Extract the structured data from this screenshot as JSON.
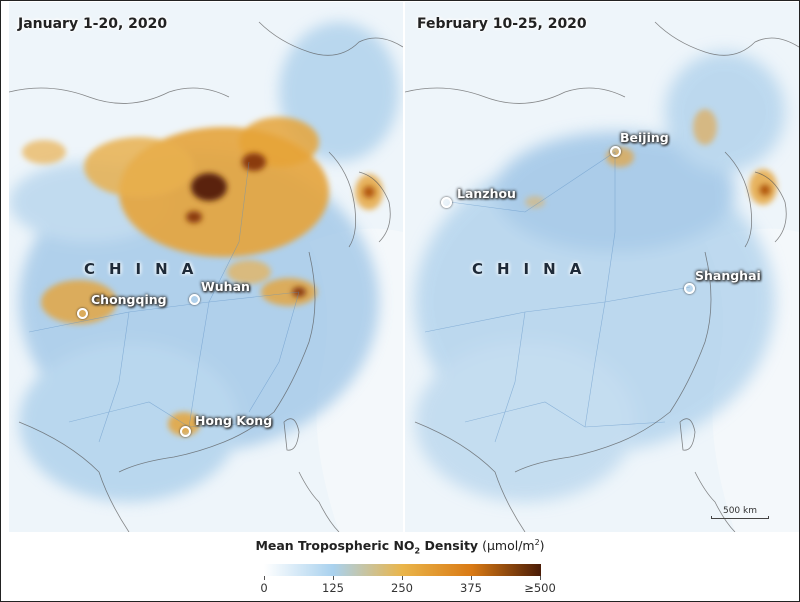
{
  "panels": [
    {
      "title": "January 1-20, 2020",
      "country_label": "CHINA",
      "cities": [
        "Chongqing",
        "Wuhan",
        "Hong Kong"
      ]
    },
    {
      "title": "February 10-25, 2020",
      "country_label": "CHINA",
      "cities": [
        "Beijing",
        "Lanzhou",
        "Shanghai"
      ]
    }
  ],
  "scale_bar": {
    "label": "500 km"
  },
  "legend": {
    "title_bold": "Mean Tropospheric NO",
    "title_sub": "2",
    "title_bold_end": " Density",
    "unit_prefix": "(μmol/m",
    "unit_sup": "2",
    "unit_suffix": ")",
    "ticks": [
      "0",
      "125",
      "250",
      "375",
      "≥500"
    ],
    "colors": [
      "#ffffff",
      "#a9d1ee",
      "#eab54a",
      "#d97a15",
      "#4a1c07"
    ]
  },
  "colors": {
    "land_base": "#eef5fa",
    "low_emission": "#7fb1da",
    "high_emission": "#e6a43a",
    "peak_emission": "#5a2208"
  }
}
